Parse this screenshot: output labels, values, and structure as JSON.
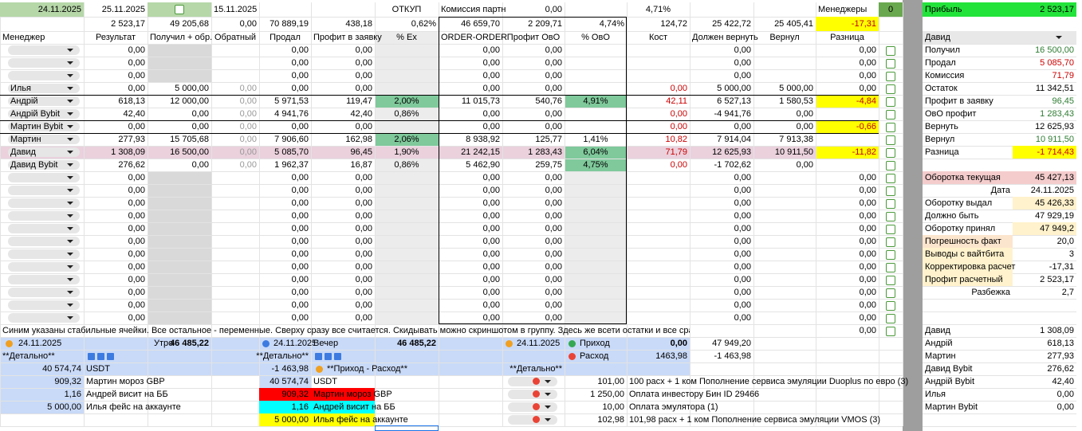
{
  "top_bar": {
    "date_from": "24.11.2025",
    "date_to": "25.11.2025",
    "date_base": "15.11.2025",
    "buyout": "ОТКУП",
    "commission_label": "Комиссия партн",
    "commission": "0,00",
    "rate": "4,71%",
    "managers_label": "Менеджеры",
    "managers_count": "0",
    "profit_label": "Прибыль",
    "profit": "2 523,17"
  },
  "totals": [
    null,
    "2 523,17",
    "49 205,68",
    "0,00",
    "70 889,19",
    "438,18",
    "0,62%",
    "46 659,70",
    "2 209,71",
    "4,74%",
    "124,72",
    "25 422,72",
    "25 405,41",
    "-17,31"
  ],
  "headers": [
    "Менеджер",
    "Результат",
    "Получил + обр.",
    "Обратный",
    "Продал",
    "Профит в заявку",
    "% Ex",
    "ORDER-ORDER",
    "Профит ОвО",
    "% ОвО",
    "Кост",
    "Должен вернуть",
    "Вернул",
    "Разница"
  ],
  "side_selector": "Давид",
  "rows": [
    [
      null,
      "0,00",
      null,
      null,
      "0,00",
      "0,00",
      null,
      "0,00",
      "0,00",
      null,
      null,
      "0,00",
      null,
      "0,00"
    ],
    [
      null,
      "0,00",
      null,
      null,
      "0,00",
      "0,00",
      null,
      "0,00",
      "0,00",
      null,
      null,
      "0,00",
      null,
      "0,00"
    ],
    [
      null,
      "0,00",
      null,
      null,
      "0,00",
      "0,00",
      null,
      "0,00",
      "0,00",
      null,
      null,
      "0,00",
      null,
      "0,00"
    ],
    [
      "Илья",
      "0,00",
      "5 000,00",
      "0,00",
      "0,00",
      "0,00",
      null,
      "0,00",
      "0,00",
      null,
      "0,00",
      "5 000,00",
      "5 000,00",
      "0,00"
    ],
    [
      "Андрій",
      "618,13",
      "12 000,00",
      "0,00",
      "5 971,53",
      "119,47",
      "2,00%",
      "11 015,73",
      "540,76",
      "4,91%",
      "42,11",
      "6 527,13",
      "1 580,53",
      "-4,84"
    ],
    [
      "Андрій Bybit",
      "42,40",
      "0,00",
      "0,00",
      "4 941,76",
      "42,40",
      "0,86%",
      "0,00",
      "0,00",
      null,
      "0,00",
      "-4 941,76",
      "0,00",
      null
    ],
    [
      "Мартин Bybit",
      "0,00",
      "0,00",
      "0,00",
      "0,00",
      "0,00",
      null,
      "0,00",
      "0,00",
      null,
      "0,00",
      "0,00",
      "0,00",
      "-0,66"
    ],
    [
      "Мартин",
      "277,93",
      "15 705,68",
      "0,00",
      "7 906,60",
      "162,98",
      "2,06%",
      "8 938,92",
      "125,77",
      "1,41%",
      "10,82",
      "7 914,04",
      "7 913,38",
      null
    ],
    [
      "Давид",
      "1 308,09",
      "16 500,00",
      "0,00",
      "5 085,70",
      "96,45",
      "1,90%",
      "21 242,15",
      "1 283,43",
      "6,04%",
      "71,79",
      "12 625,93",
      "10 911,50",
      "-11,82"
    ],
    [
      "Давид Bybit",
      "276,62",
      "0,00",
      "0,00",
      "1 962,37",
      "16,87",
      "0,86%",
      "5 462,90",
      "259,75",
      "4,75%",
      "0,00",
      "-1 702,62",
      "0,00",
      null
    ],
    [
      null,
      "0,00",
      null,
      null,
      "0,00",
      "0,00",
      null,
      "0,00",
      "0,00",
      null,
      null,
      "0,00",
      null,
      "0,00"
    ],
    [
      null,
      "0,00",
      null,
      null,
      "0,00",
      "0,00",
      null,
      "0,00",
      "0,00",
      null,
      null,
      "0,00",
      null,
      "0,00"
    ],
    [
      null,
      "0,00",
      null,
      null,
      "0,00",
      "0,00",
      null,
      "0,00",
      "0,00",
      null,
      null,
      "0,00",
      null,
      "0,00"
    ],
    [
      null,
      "0,00",
      null,
      null,
      "0,00",
      "0,00",
      null,
      "0,00",
      "0,00",
      null,
      null,
      "0,00",
      null,
      "0,00"
    ],
    [
      null,
      "0,00",
      null,
      null,
      "0,00",
      "0,00",
      null,
      "0,00",
      "0,00",
      null,
      null,
      "0,00",
      null,
      "0,00"
    ],
    [
      null,
      "0,00",
      null,
      null,
      "0,00",
      "0,00",
      null,
      "0,00",
      "0,00",
      null,
      null,
      "0,00",
      null,
      "0,00"
    ],
    [
      null,
      "0,00",
      null,
      null,
      "0,00",
      "0,00",
      null,
      "0,00",
      "0,00",
      null,
      null,
      "0,00",
      null,
      "0,00"
    ],
    [
      null,
      "0,00",
      null,
      null,
      "0,00",
      "0,00",
      null,
      "0,00",
      "0,00",
      null,
      null,
      "0,00",
      null,
      "0,00"
    ],
    [
      null,
      "0,00",
      null,
      null,
      "0,00",
      "0,00",
      null,
      "0,00",
      "0,00",
      null,
      null,
      "0,00",
      null,
      "0,00"
    ],
    [
      null,
      "0,00",
      null,
      null,
      "0,00",
      "0,00",
      null,
      "0,00",
      "0,00",
      null,
      null,
      "0,00",
      null,
      "0,00"
    ],
    [
      null,
      "0,00",
      null,
      null,
      "0,00",
      "0,00",
      null,
      "0,00",
      "0,00",
      null,
      null,
      "0,00",
      null,
      "0,00"
    ],
    [
      null,
      "0,00",
      null,
      null,
      "0,00",
      "0,00",
      null,
      "0,00",
      "0,00",
      null,
      null,
      "0,00",
      null,
      "0,00"
    ]
  ],
  "last_difference": "0,00",
  "side_summary": [
    [
      "Получил",
      "16 500,00"
    ],
    [
      "Продал",
      "5 085,70"
    ],
    [
      "Комиссия",
      "71,79"
    ],
    [
      "Остаток",
      "11 342,51"
    ],
    [
      "Профит в заявку",
      "96,45"
    ],
    [
      "ОвО профит",
      "1 283,43"
    ],
    [
      "Вернуть",
      "12 625,93"
    ],
    [
      "Вернул",
      "10 911,50"
    ],
    [
      "Разница",
      "-1 714,43"
    ]
  ],
  "turnover": [
    [
      "Оборотка текущая",
      "45 427,13"
    ],
    [
      "Дата",
      "24.11.2025"
    ],
    [
      "Оборотку выдал",
      "45 426,33"
    ],
    [
      "Должно быть",
      "47 929,19"
    ],
    [
      "Оборотку принял",
      "47 949,2"
    ],
    [
      "Погрешность факт",
      "20,0"
    ],
    [
      "Выводы с вайтбита",
      "3"
    ],
    [
      "Корректировка расчет",
      "-17,31"
    ],
    [
      "Профит расчетный",
      "2 523,17"
    ],
    [
      "Разбежка",
      "2,7"
    ]
  ],
  "manager_results": [
    [
      "Давид",
      "1 308,09"
    ],
    [
      "Андрій",
      "618,13"
    ],
    [
      "Мартин",
      "277,93"
    ],
    [
      "Давид Bybit",
      "276,62"
    ],
    [
      "Андрій Bybit",
      "42,40"
    ],
    [
      "Илья",
      "0,00"
    ],
    [
      "Мартин Bybit",
      "0,00"
    ]
  ],
  "note": "Синим указаны стабильные ячейки. Все остальное - переменные. Сверху сразу все считается. Скидывать можно скриншотом в группу. Здесь же всети остатки и все сразу счит",
  "morning": {
    "date": "24.11.2025",
    "label": "Утро",
    "total": "46 485,22",
    "detail": "**Детально**",
    "usdt": "40 574,74",
    "usdt_label": "USDT",
    "items": [
      [
        "909,32",
        "Мартин мороз GBP"
      ],
      [
        "1,16",
        "Андрей висит на ББ"
      ],
      [
        "5 000,00",
        "Илья фейс на аккаунте"
      ]
    ]
  },
  "evening": {
    "date": "24.11.2025",
    "label": "Вечер",
    "total": "46 485,22",
    "detail": "**Детально**",
    "diff": "-1 463,98",
    "diff_label": "**Приход - Расход**",
    "usdt": "40 574,74",
    "usdt_label": "USDT",
    "items": [
      [
        "909,32",
        "Мартин мороз GBP"
      ],
      [
        "1,16",
        "Андрей висит на ББ"
      ],
      [
        "5 000,00",
        "Илья фейс на аккаунте"
      ]
    ]
  },
  "flow": {
    "date": "24.11.2025",
    "income_label": "Приход",
    "income": "0,00",
    "income_total": "47 949,20",
    "expense_label": "Расход",
    "expense": "1463,98",
    "expense_total": "-1 463,98",
    "detail": "**Детально**",
    "items": [
      [
        "101,00",
        "100 расх + 1 ком Пополнение сервиса эмуляции Duoplus по евро (3)"
      ],
      [
        "1 250,00",
        "Оплата инвестору Бин ID 29466"
      ],
      [
        "10,00",
        "Оплата эмулятора (1)"
      ],
      [
        "102,98",
        "101,98 расх + 1 ком Пополнение сервиса эмуляции VMOS (3)"
      ]
    ]
  }
}
